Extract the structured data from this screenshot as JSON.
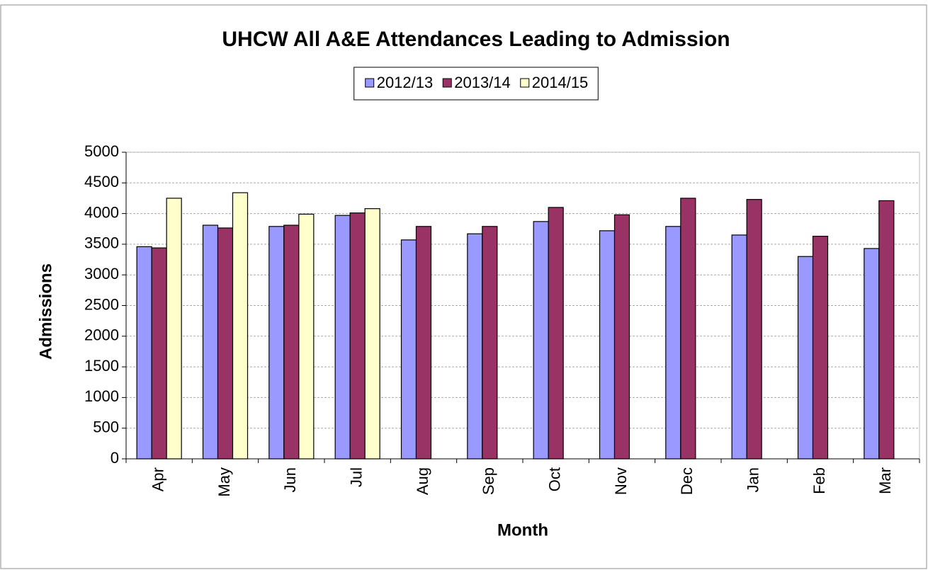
{
  "chart_data": {
    "type": "bar",
    "title": "UHCW All A&E Attendances Leading to Admission",
    "x_label": "Month",
    "y_label": "Admissions",
    "categories": [
      "Apr",
      "May",
      "Jun",
      "Jul",
      "Aug",
      "Sep",
      "Oct",
      "Nov",
      "Dec",
      "Jan",
      "Feb",
      "Mar"
    ],
    "series": [
      {
        "name": "2012/13",
        "color": "#9999ff",
        "values": [
          3460,
          3810,
          3790,
          3970,
          3570,
          3670,
          3870,
          3720,
          3790,
          3650,
          3300,
          3430
        ]
      },
      {
        "name": "2013/14",
        "color": "#993366",
        "values": [
          3440,
          3765,
          3810,
          4010,
          3790,
          3790,
          4100,
          3980,
          4250,
          4230,
          3630,
          4210
        ]
      },
      {
        "name": "2014/15",
        "color": "#ffffcc",
        "values": [
          4250,
          4340,
          3990,
          4080,
          null,
          null,
          null,
          null,
          null,
          null,
          null,
          null
        ]
      }
    ],
    "ylim": [
      0,
      5000
    ],
    "yticks": [
      0,
      500,
      1000,
      1500,
      2000,
      2500,
      3000,
      3500,
      4000,
      4500,
      5000
    ],
    "grid": true,
    "legend": "top"
  }
}
